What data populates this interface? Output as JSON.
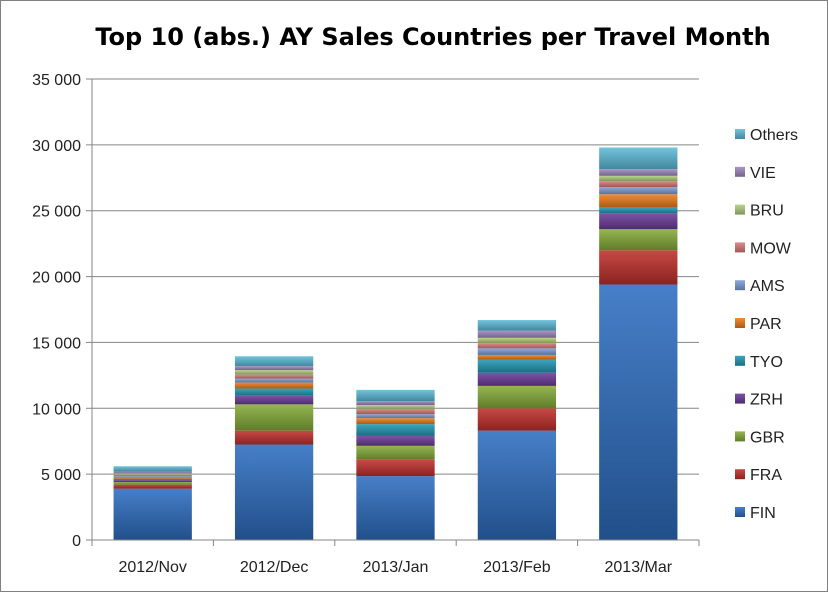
{
  "chart_data": {
    "type": "bar",
    "stacked": true,
    "title": "Top 10 (abs.) AY Sales Countries per Travel Month",
    "xlabel": "",
    "ylabel": "",
    "ylim": [
      0,
      35000
    ],
    "yticks": [
      0,
      5000,
      10000,
      15000,
      20000,
      25000,
      30000,
      35000
    ],
    "ytick_labels": [
      "0",
      "5 000",
      "10 000",
      "15 000",
      "20 000",
      "25 000",
      "30 000",
      "35 000"
    ],
    "grid": true,
    "legend_position": "right",
    "categories": [
      "2012/Nov",
      "2012/Dec",
      "2013/Jan",
      "2013/Feb",
      "2013/Mar"
    ],
    "series": [
      {
        "name": "FIN",
        "color": "#2e6ec0",
        "values": [
          3900,
          7250,
          4850,
          8300,
          19400
        ]
      },
      {
        "name": "FRA",
        "color": "#c0302d",
        "values": [
          300,
          1050,
          1250,
          1700,
          2600
        ]
      },
      {
        "name": "GBR",
        "color": "#86ac3a",
        "values": [
          200,
          2000,
          1050,
          1700,
          1600
        ]
      },
      {
        "name": "ZRH",
        "color": "#6c3d9a",
        "values": [
          150,
          650,
          750,
          1000,
          1200
        ]
      },
      {
        "name": "TYO",
        "color": "#2399b4",
        "values": [
          100,
          550,
          900,
          1000,
          450
        ]
      },
      {
        "name": "PAR",
        "color": "#ef7d1a",
        "values": [
          100,
          450,
          450,
          350,
          1000
        ]
      },
      {
        "name": "AMS",
        "color": "#7d9fd6",
        "values": [
          100,
          300,
          300,
          500,
          550
        ]
      },
      {
        "name": "MOW",
        "color": "#d77c7b",
        "values": [
          100,
          300,
          400,
          400,
          450
        ]
      },
      {
        "name": "BRU",
        "color": "#b3cf7e",
        "values": [
          100,
          350,
          300,
          400,
          400
        ]
      },
      {
        "name": "VIE",
        "color": "#9f89bf",
        "values": [
          150,
          300,
          300,
          550,
          500
        ]
      },
      {
        "name": "Others",
        "color": "#5fbcd8",
        "values": [
          400,
          750,
          850,
          800,
          1650
        ]
      }
    ]
  }
}
